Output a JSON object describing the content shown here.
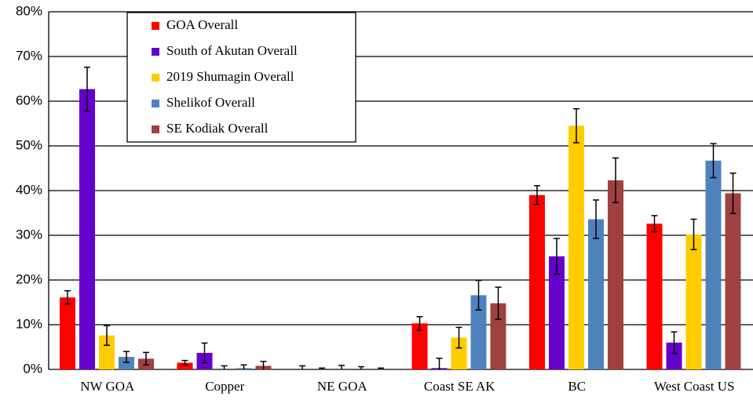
{
  "chart_data": {
    "type": "bar",
    "categories": [
      "NW GOA",
      "Copper",
      "NE GOA",
      "Coast SE AK",
      "BC",
      "West Coast US"
    ],
    "series": [
      {
        "name": "GOA Overall",
        "color": "#ff0000",
        "values": [
          16.1,
          1.5,
          0,
          10.3,
          39.0,
          32.6
        ],
        "errors": [
          1.5,
          0.5,
          0.8,
          1.5,
          2.1,
          1.8
        ]
      },
      {
        "name": "South of Akutan Overall",
        "color": "#6600cc",
        "values": [
          62.7,
          3.7,
          0,
          0.3,
          25.3,
          6.0
        ],
        "errors": [
          4.9,
          2.2,
          0.3,
          2.2,
          4.0,
          2.4
        ]
      },
      {
        "name": "2019 Shumagin Overall",
        "color": "#ffcc00",
        "values": [
          7.6,
          0,
          0,
          7.1,
          54.5,
          30.2
        ],
        "errors": [
          2.2,
          0.8,
          0.9,
          2.3,
          3.8,
          3.4
        ]
      },
      {
        "name": "Shelikof Overall",
        "color": "#4f81bd",
        "values": [
          2.8,
          0.3,
          0,
          16.6,
          33.6,
          46.7
        ],
        "errors": [
          1.2,
          0.7,
          0.6,
          3.3,
          4.3,
          3.8
        ]
      },
      {
        "name": "SE Kodiak Overall",
        "color": "#a04040",
        "values": [
          2.4,
          0.8,
          0,
          14.8,
          42.3,
          39.4
        ],
        "errors": [
          1.4,
          1.0,
          0.3,
          3.6,
          5.0,
          4.5
        ]
      }
    ],
    "ylim": [
      0,
      80
    ],
    "yticks": [
      {
        "value": 0,
        "label": "0%"
      },
      {
        "value": 10,
        "label": "10%"
      },
      {
        "value": 20,
        "label": "20%"
      },
      {
        "value": 30,
        "label": "30%"
      },
      {
        "value": 40,
        "label": "40%"
      },
      {
        "value": 50,
        "label": "50%"
      },
      {
        "value": 60,
        "label": "60%"
      },
      {
        "value": 70,
        "label": "70%"
      },
      {
        "value": 80,
        "label": "80%"
      }
    ],
    "grid": true,
    "legend": "top-left"
  }
}
